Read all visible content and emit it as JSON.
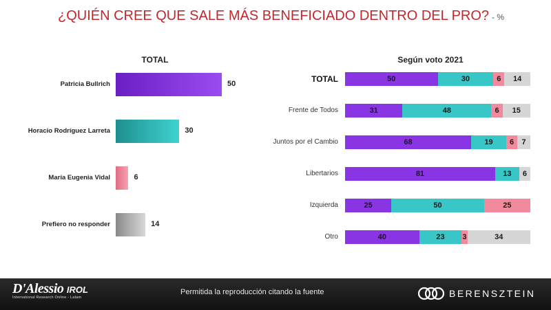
{
  "title": "¿QUIÉN CREE QUE SALE MÁS BENEFICIADO DENTRO DEL PRO?",
  "title_suffix": "- %",
  "colors": {
    "title": "#c0282e",
    "purple": "#8a35e3",
    "teal": "#38c7c6",
    "pink": "#f08a9c",
    "gray": "#d6d6d6"
  },
  "chart_data": [
    {
      "type": "bar",
      "orientation": "horizontal",
      "title": "TOTAL",
      "categories": [
        "Patricia Bullrich",
        "Horacio Rodríguez Larreta",
        "María Eugenia Vidal",
        "Prefiero no responder"
      ],
      "values": [
        50,
        30,
        6,
        14
      ],
      "xlim": [
        0,
        50
      ]
    },
    {
      "type": "bar",
      "stacked": true,
      "orientation": "horizontal",
      "title": "Según voto 2021",
      "categories": [
        "TOTAL",
        "Frente de Todos",
        "Juntos por el Cambio",
        "Libertarios",
        "Izquierda",
        "Otro"
      ],
      "series": [
        {
          "name": "Patricia Bullrich",
          "values": [
            50,
            31,
            68,
            81,
            25,
            40
          ]
        },
        {
          "name": "Horacio Rodríguez Larreta",
          "values": [
            30,
            48,
            19,
            13,
            50,
            23
          ]
        },
        {
          "name": "María Eugenia Vidal",
          "values": [
            6,
            6,
            6,
            0,
            25,
            3
          ]
        },
        {
          "name": "Prefiero no responder",
          "values": [
            14,
            15,
            7,
            6,
            0,
            34
          ]
        }
      ]
    }
  ],
  "footer": {
    "brand_left": "D'Alessio",
    "brand_left_suffix": "IROL",
    "brand_left_tagline": "International Research Online - Latam",
    "note": "Permitida la reproducción citando la fuente",
    "brand_right": "BERENSZTEIN"
  }
}
